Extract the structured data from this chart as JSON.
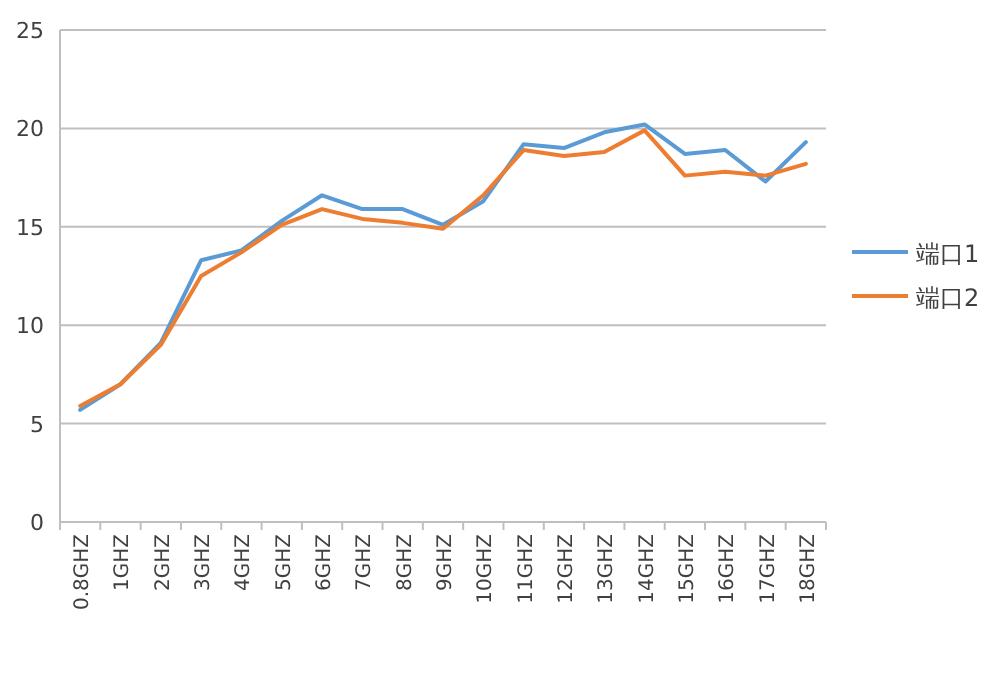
{
  "chart_data": {
    "type": "line",
    "categories": [
      "0.8GHZ",
      "1GHZ",
      "2GHZ",
      "3GHZ",
      "4GHZ",
      "5GHZ",
      "6GHZ",
      "7GHZ",
      "8GHZ",
      "9GHZ",
      "10GHZ",
      "11GHZ",
      "12GHZ",
      "13GHZ",
      "14GHZ",
      "15GHZ",
      "16GHZ",
      "17GHZ",
      "18GHZ"
    ],
    "series": [
      {
        "name": "端口1",
        "color": "#5b9bd5",
        "values": [
          5.7,
          7.0,
          9.1,
          13.3,
          13.8,
          15.3,
          16.6,
          15.9,
          15.9,
          15.1,
          16.3,
          19.2,
          19.0,
          19.8,
          20.2,
          18.7,
          18.9,
          17.3,
          19.3
        ]
      },
      {
        "name": "端口2",
        "color": "#ed7d31",
        "values": [
          5.9,
          7.0,
          9.0,
          12.5,
          13.7,
          15.1,
          15.9,
          15.4,
          15.2,
          14.9,
          16.6,
          18.9,
          18.6,
          18.8,
          19.9,
          17.6,
          17.8,
          17.6,
          18.2
        ]
      }
    ],
    "ylim": [
      0,
      25
    ],
    "yticks": [
      0,
      5,
      10,
      15,
      20,
      25
    ],
    "grid": "y",
    "legend": "right",
    "marker": "none",
    "line_style": "solid"
  }
}
